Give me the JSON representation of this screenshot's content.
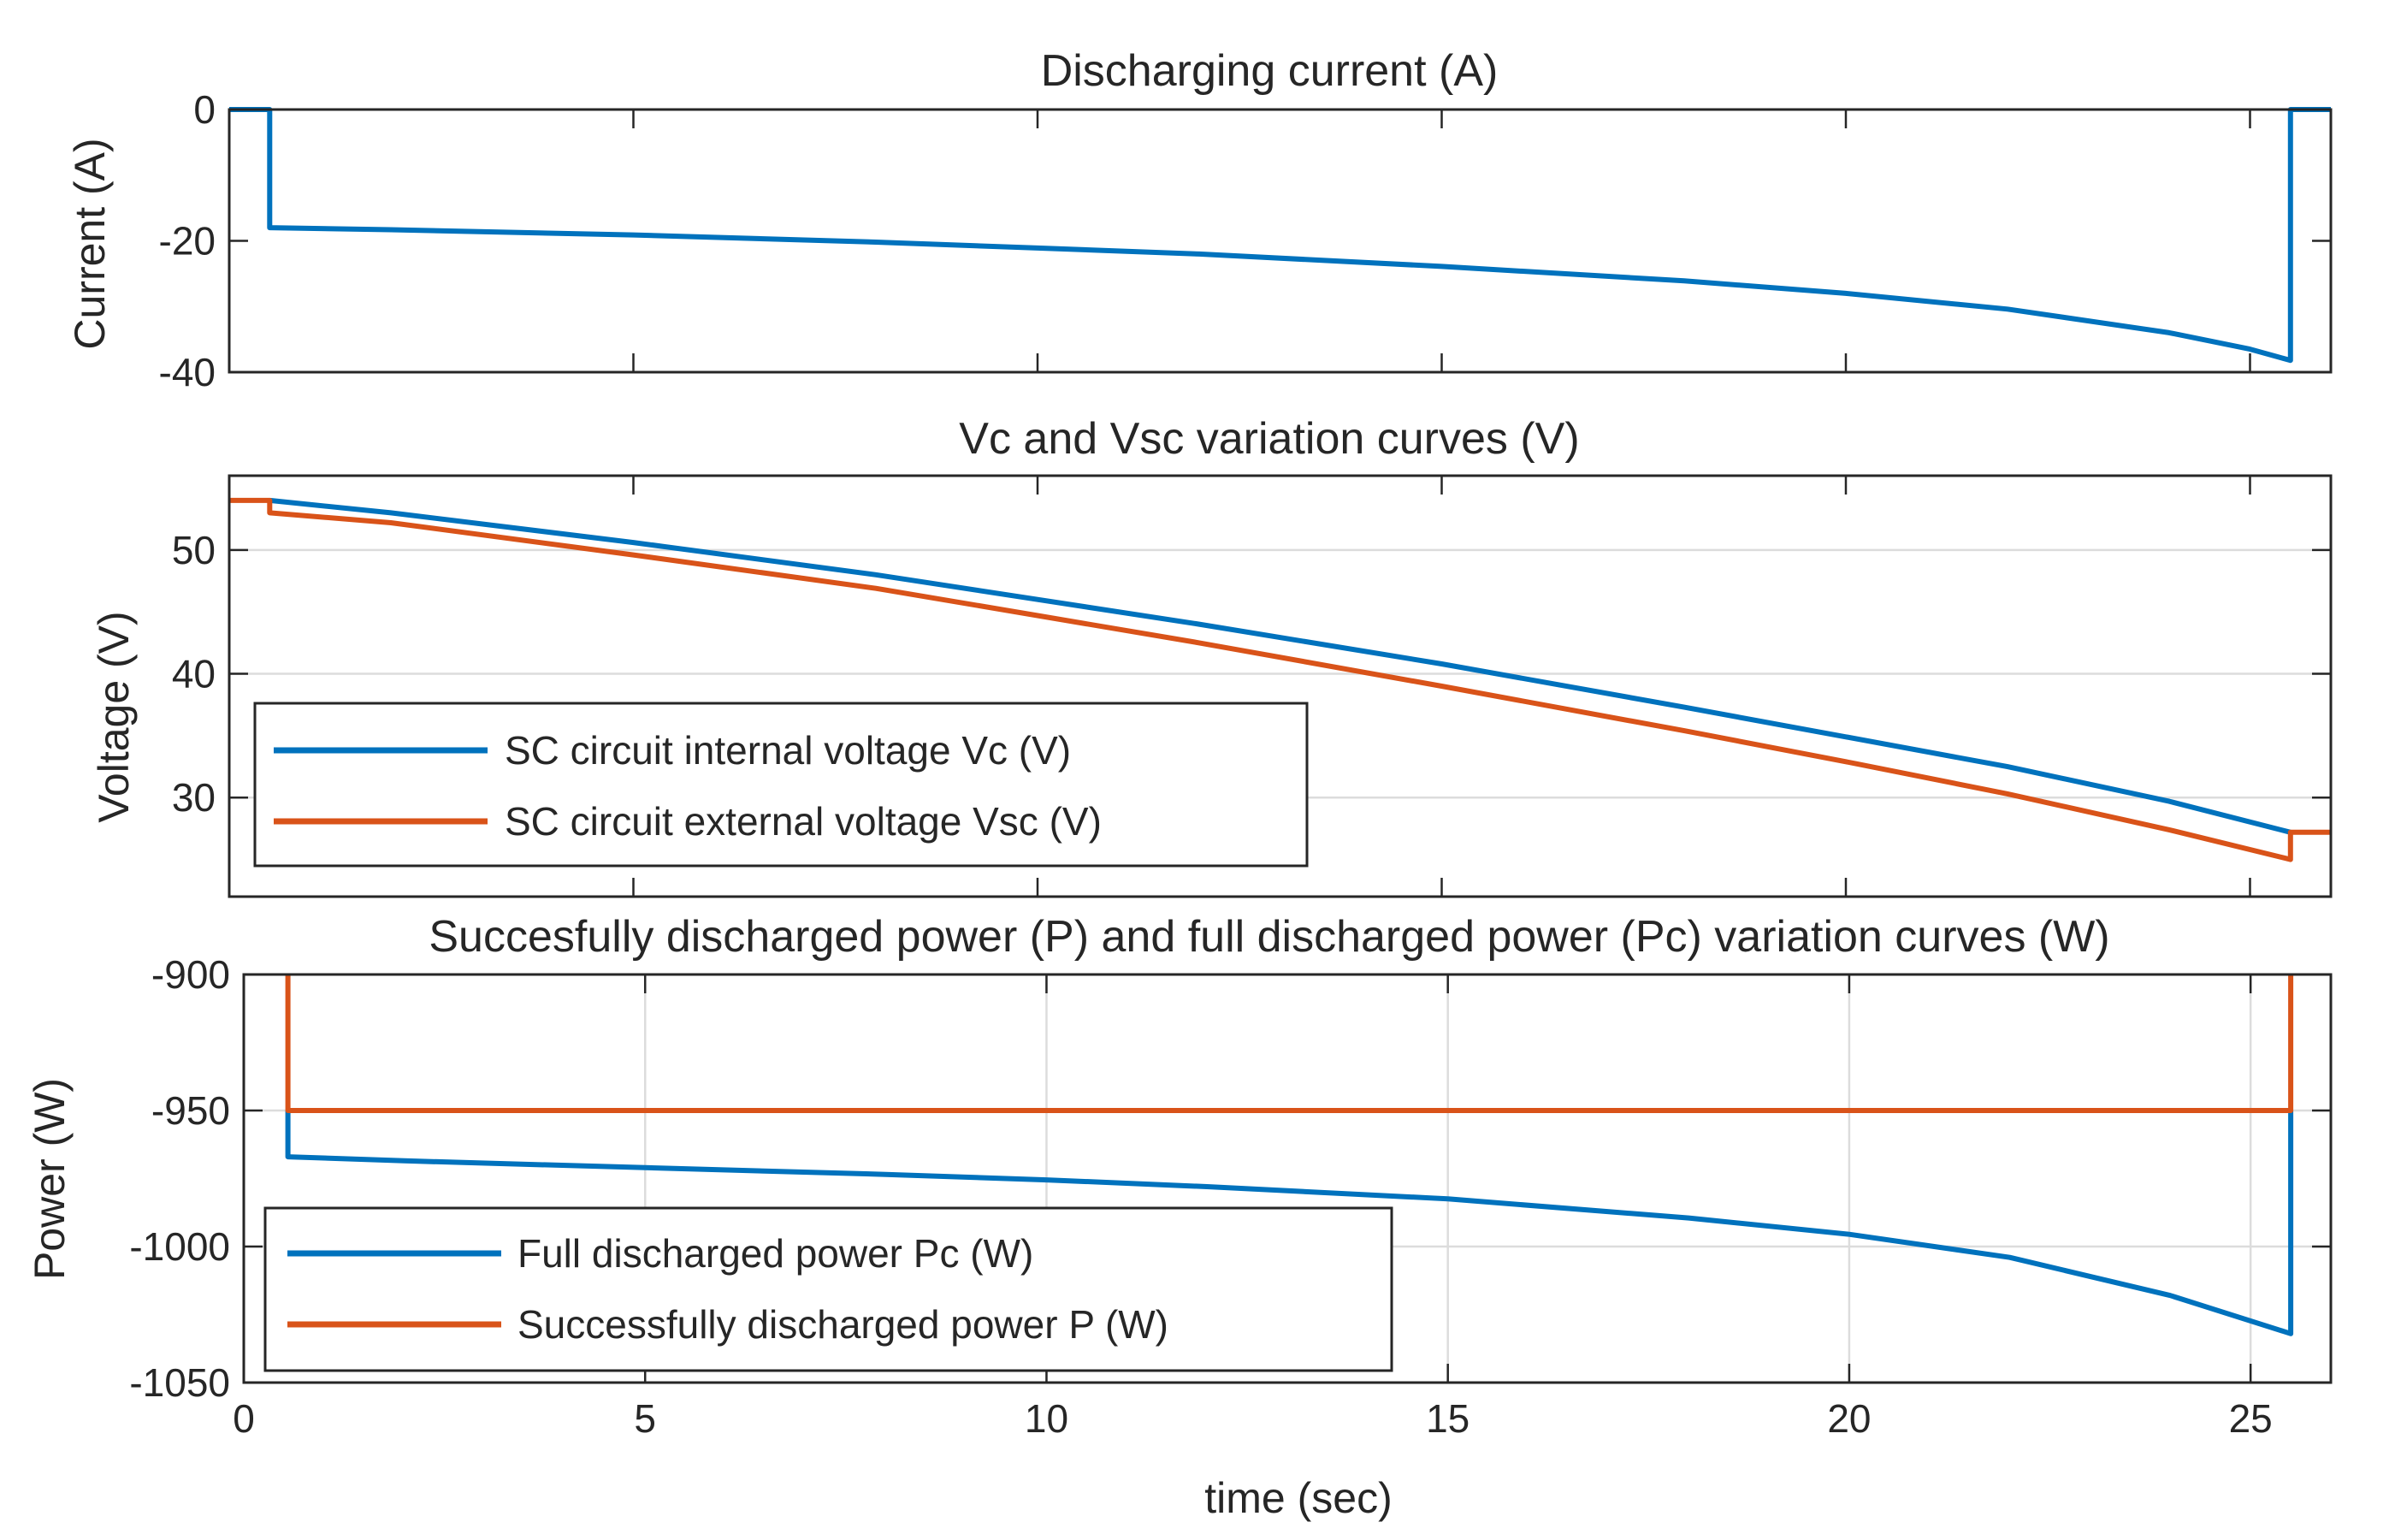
{
  "colors": {
    "blue": "#0072BD",
    "orange": "#D95319"
  },
  "chart_data": [
    {
      "type": "line",
      "title": "Discharging current (A)",
      "xlabel": "",
      "ylabel": "Current (A)",
      "xlim": [
        0,
        26
      ],
      "ylim": [
        -40,
        0
      ],
      "yticks": [
        0,
        -20,
        -40
      ],
      "ytick_labels": [
        "0",
        "-20",
        "-40"
      ],
      "series": [
        {
          "name": "Discharging current",
          "color": "#0072BD",
          "x": [
            0,
            0.5,
            0.5,
            2,
            5,
            8,
            10,
            12,
            15,
            18,
            20,
            22,
            24,
            25,
            25.5,
            25.5,
            26
          ],
          "y": [
            0,
            0,
            -18,
            -18.3,
            -19.1,
            -20.2,
            -21.1,
            -22,
            -23.9,
            -26.1,
            -28,
            -30.4,
            -34,
            -36.5,
            -38.2,
            0,
            0
          ]
        }
      ]
    },
    {
      "type": "line",
      "title": "Vc and Vsc variation curves (V)",
      "xlabel": "",
      "ylabel": "Voltage (V)",
      "xlim": [
        0,
        26
      ],
      "ylim": [
        22,
        56
      ],
      "yticks": [
        30,
        40,
        50
      ],
      "ytick_labels": [
        "30",
        "40",
        "50"
      ],
      "legend": "bottom-left",
      "series": [
        {
          "name": "SC circuit internal voltage Vc (V)",
          "color": "#0072BD",
          "x": [
            0.5,
            2,
            5,
            8,
            10,
            12,
            15,
            18,
            20,
            22,
            24,
            25.5
          ],
          "y": [
            54,
            53,
            50.6,
            48,
            46,
            44,
            40.8,
            37.3,
            34.9,
            32.5,
            29.7,
            27.2
          ]
        },
        {
          "name": "SC circuit external voltage Vsc (V)",
          "color": "#D95319",
          "x": [
            0,
            0.5,
            0.5,
            2,
            5,
            8,
            10,
            12,
            15,
            18,
            20,
            22,
            24,
            25.5,
            25.5,
            26
          ],
          "y": [
            54,
            54,
            53,
            52.2,
            49.6,
            46.9,
            44.7,
            42.5,
            39,
            35.4,
            32.9,
            30.3,
            27.4,
            25,
            27.2,
            27.2
          ]
        }
      ]
    },
    {
      "type": "line",
      "title": "Succesfully discharged power (P) and full discharged power (Pc) variation curves (W)",
      "xlabel": "time (sec)",
      "ylabel": "Power (W)",
      "xlim": [
        0,
        26
      ],
      "ylim": [
        -1050,
        -900
      ],
      "xticks": [
        0,
        5,
        10,
        15,
        20,
        25
      ],
      "xtick_labels": [
        "0",
        "5",
        "10",
        "15",
        "20",
        "25"
      ],
      "yticks": [
        -900,
        -950,
        -1000,
        -1050
      ],
      "ytick_labels": [
        "-900",
        "-950",
        "-1000",
        "-1050"
      ],
      "legend": "bottom-left",
      "series": [
        {
          "name": "Full discharged power Pc (W)",
          "color": "#0072BD",
          "x": [
            0.55,
            0.55,
            2,
            5,
            8,
            10,
            12,
            15,
            18,
            20,
            22,
            24,
            25.5,
            25.5
          ],
          "y": [
            -950,
            -967,
            -968.5,
            -971,
            -973.5,
            -975.5,
            -978,
            -982.5,
            -989.5,
            -995.5,
            -1004,
            -1018,
            -1032,
            -950
          ]
        },
        {
          "name": "Successfully discharged power P (W)",
          "color": "#D95319",
          "x": [
            0.55,
            0.55,
            25.5,
            25.5
          ],
          "y": [
            -900,
            -950,
            -950,
            -900
          ]
        }
      ]
    }
  ]
}
